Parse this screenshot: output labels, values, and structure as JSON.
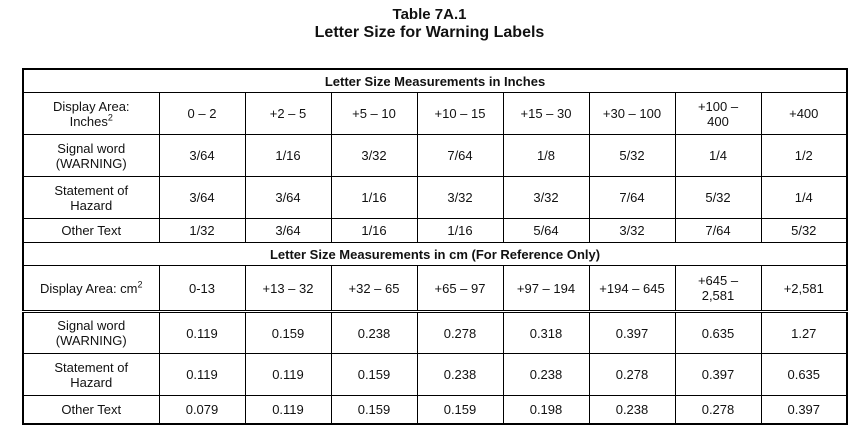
{
  "title": "Table 7A.1",
  "subtitle": "Letter Size for Warning Labels",
  "sections": [
    {
      "heading": "Letter Size Measurements in Inches",
      "header": {
        "label": "Display Area: Inches",
        "sup": "2",
        "cells": [
          "0 – 2",
          "+2 – 5",
          "+5 – 10",
          "+10 – 15",
          "+15 – 30",
          "+30 – 100",
          "+100 – 400",
          "+400"
        ]
      },
      "rows": [
        [
          "Signal word (WARNING)",
          "3/64",
          "1/16",
          "3/32",
          "7/64",
          "1/8",
          "5/32",
          "1/4",
          "1/2"
        ],
        [
          "Statement of Hazard",
          "3/64",
          "3/64",
          "1/16",
          "3/32",
          "3/32",
          "7/64",
          "5/32",
          "1/4"
        ],
        [
          "Other Text",
          "1/32",
          "3/64",
          "1/16",
          "1/16",
          "5/64",
          "3/32",
          "7/64",
          "5/32"
        ]
      ]
    },
    {
      "heading": "Letter Size Measurements in cm (For Reference Only)",
      "header": {
        "label": "Display Area: cm",
        "sup": "2",
        "cells": [
          "0-13",
          "+13 – 32",
          "+32 – 65",
          "+65 – 97",
          "+97 – 194",
          "+194 – 645",
          "+645 – 2,581",
          "+2,581"
        ]
      },
      "rows": [
        [
          "Signal word (WARNING)",
          "0.119",
          "0.159",
          "0.238",
          "0.278",
          "0.318",
          "0.397",
          "0.635",
          "1.27"
        ],
        [
          "Statement of Hazard",
          "0.119",
          "0.119",
          "0.159",
          "0.238",
          "0.238",
          "0.278",
          "0.397",
          "0.635"
        ],
        [
          "Other Text",
          "0.079",
          "0.119",
          "0.159",
          "0.159",
          "0.198",
          "0.238",
          "0.278",
          "0.397"
        ]
      ]
    }
  ]
}
